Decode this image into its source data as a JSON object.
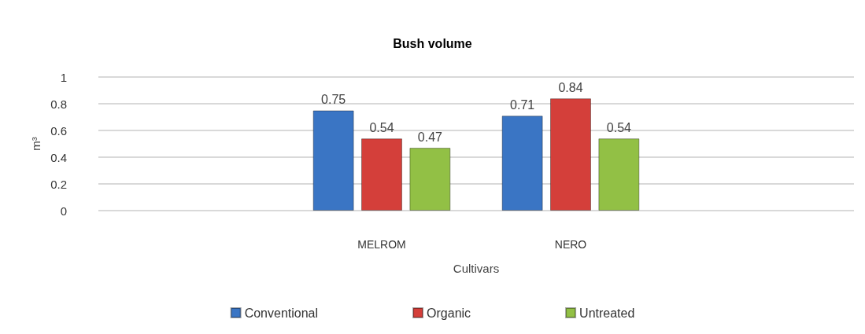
{
  "chart_data": {
    "type": "bar",
    "title": "Bush volume",
    "xlabel": "Cultivars",
    "ylabel": "m³",
    "categories": [
      null,
      "MELROM",
      "NERO",
      null
    ],
    "series": [
      {
        "name": "Conventional",
        "color": "#3a75c4",
        "values": [
          null,
          0.75,
          0.71,
          null
        ]
      },
      {
        "name": "Organic",
        "color": "#d43f3a",
        "values": [
          null,
          0.54,
          0.84,
          null
        ]
      },
      {
        "name": "Untreated",
        "color": "#92c045",
        "values": [
          null,
          0.47,
          0.54,
          null
        ]
      }
    ],
    "ylim": [
      0,
      1
    ],
    "yticks": [
      0,
      0.2,
      0.4,
      0.6,
      0.8,
      1
    ],
    "grid": "y",
    "legend": "bottom",
    "data_labels": true
  }
}
